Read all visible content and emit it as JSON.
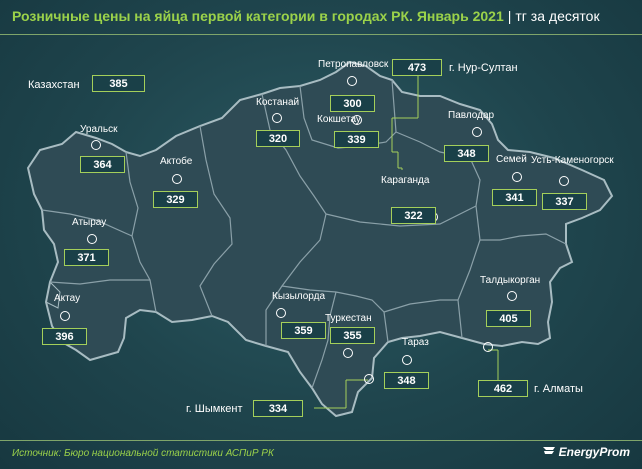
{
  "title": "Розничные цены на яйца первой категории в городах РК. Январь 2021",
  "unit": "тг за десяток",
  "source": "Источник: Бюро национальной статистики АСПиР РК",
  "brand": "EnergyProm",
  "kazakhstan": {
    "label": "Казахстан",
    "value": "385"
  },
  "cities": {
    "petropavlovsk": {
      "label": "Петропавловск",
      "value": "300"
    },
    "nursultan": {
      "label": "г. Нур-Султан",
      "value": "473"
    },
    "kostanay": {
      "label": "Костанай",
      "value": "320"
    },
    "kokshetau": {
      "label": "Кокшетау",
      "value": "339"
    },
    "pavlodar": {
      "label": "Павлодар",
      "value": "348"
    },
    "uralsk": {
      "label": "Уральск",
      "value": "364"
    },
    "aktobe": {
      "label": "Актобе",
      "value": "329"
    },
    "semey": {
      "label": "Семей",
      "value": "341"
    },
    "ustkamenogorsk": {
      "label": "Усть-Каменогорск",
      "value": "337"
    },
    "karaganda": {
      "label": "Караганда",
      "value": "322"
    },
    "atyrau": {
      "label": "Атырау",
      "value": "371"
    },
    "aktau": {
      "label": "Актау",
      "value": "396"
    },
    "taldykorgan": {
      "label": "Талдыкорган",
      "value": "405"
    },
    "kyzylorda": {
      "label": "Кызылорда",
      "value": "359"
    },
    "turkestan": {
      "label": "Туркестан",
      "value": "355"
    },
    "taraz": {
      "label": "Тараз",
      "value": "348"
    },
    "almaty": {
      "label": "г. Алматы",
      "value": "462"
    },
    "shymkent": {
      "label": "г. Шымкент",
      "value": "334"
    }
  },
  "colors": {
    "background": "#1f454d",
    "map_fill": "#2f4b55",
    "region_border": "#8aa0a8",
    "accent_green": "#9bd24a",
    "box_border": "#a4cf5a"
  }
}
